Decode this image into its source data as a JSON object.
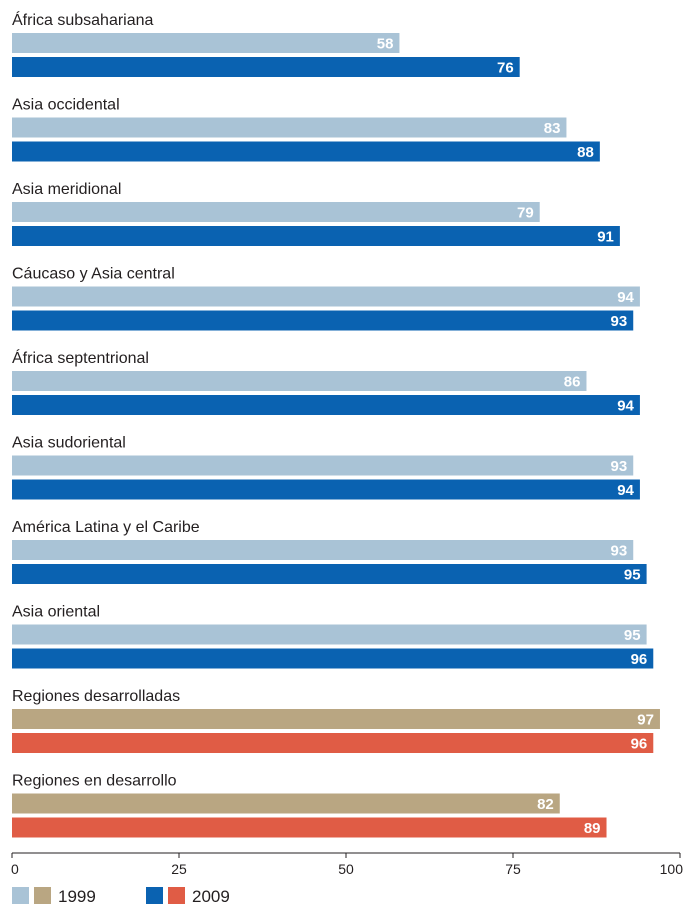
{
  "chart_data": {
    "type": "bar",
    "orientation": "horizontal",
    "categories": [
      "África subsahariana",
      "Asia occidental",
      "Asia meridional",
      "Cáucaso y Asia central",
      "África septentrional",
      "Asia sudoriental",
      "América Latina y el Caribe",
      "Asia oriental",
      "Regiones desarrolladas",
      "Regiones en desarrollo"
    ],
    "series": [
      {
        "name": "1999",
        "values": [
          58,
          83,
          79,
          94,
          86,
          93,
          93,
          95,
          97,
          82
        ]
      },
      {
        "name": "2009",
        "values": [
          76,
          88,
          91,
          93,
          94,
          94,
          95,
          96,
          96,
          89
        ]
      }
    ],
    "xlim": [
      0,
      100
    ],
    "xticks": [
      0,
      25,
      50,
      75,
      100
    ],
    "grid": false,
    "legend": "bottom-left",
    "colors": {
      "1999_regional": "#a9c3d6",
      "2009_regional": "#0a62b1",
      "1999_aggregate": "#b9a682",
      "2009_aggregate": "#e05c45",
      "label_text": "#231f20",
      "axis": "#231f20"
    },
    "aggregate_categories": [
      "Regiones desarrolladas",
      "Regiones en desarrollo"
    ]
  }
}
